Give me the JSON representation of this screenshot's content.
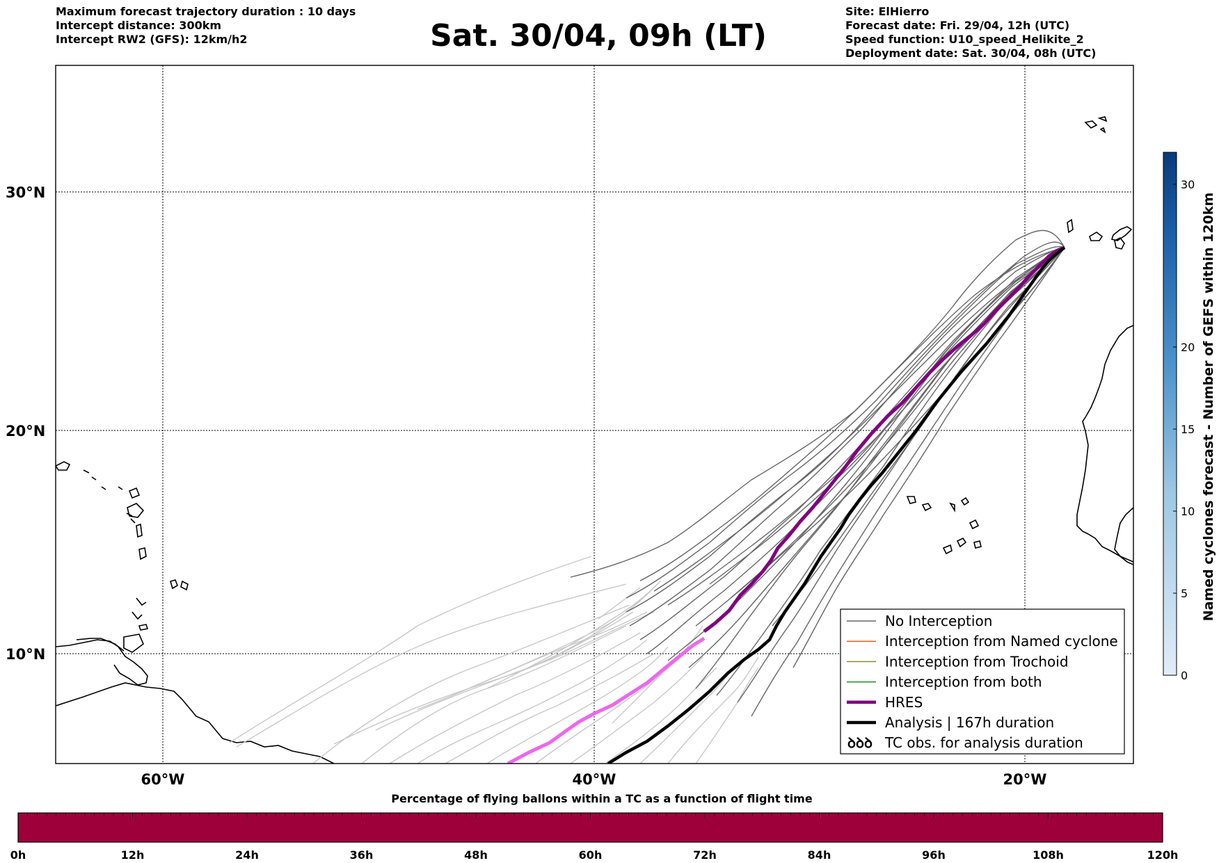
{
  "header": {
    "left": [
      "Maximum forecast trajectory duration : 10 days",
      "Intercept distance: 300km",
      "Intercept RW2 (GFS):  12km/h2"
    ],
    "title": "Sat. 30/04, 09h (LT)",
    "right": [
      "Site: ElHierro",
      "Forecast date: Fri. 29/04, 12h (UTC)",
      "Speed function: U10_speed_Helikite_2",
      "Deployment date: Sat. 30/04, 08h (UTC)"
    ]
  },
  "map": {
    "lat_labels": [
      "30°N",
      "20°N",
      "10°N"
    ],
    "lon_labels": [
      "60°W",
      "40°W",
      "20°W"
    ],
    "colors": {
      "no_interception": "#666666",
      "faded_trajectories": "#c8c8c8",
      "named_cyclone": "#ff5a1e",
      "trochoid": "#8c8c28",
      "both": "#1e8c1e",
      "hres": "#800080",
      "hres_early": "#ee66ee",
      "analysis": "#000000"
    }
  },
  "legend": {
    "items": [
      {
        "label": "No Interception",
        "color": "#666666",
        "style": "thin"
      },
      {
        "label": "Interception from Named cyclone",
        "color": "#ff5a1e",
        "style": "thin"
      },
      {
        "label": "Interception from Trochoid",
        "color": "#8c8c28",
        "style": "thin"
      },
      {
        "label": "Interception from both",
        "color": "#1e8c1e",
        "style": "thin"
      },
      {
        "label": "HRES",
        "color": "#800080",
        "style": "thick"
      },
      {
        "label": "Analysis | 167h duration",
        "color": "#000000",
        "style": "thick"
      },
      {
        "label": "TC obs. for analysis duration",
        "color": "#000000",
        "style": "symbol",
        "symbol": "ꝺꝺꝺ"
      }
    ]
  },
  "colorbar": {
    "label": "Named cyclones forecast - Number of GEFS within 120km",
    "ticks": [
      "0",
      "5",
      "10",
      "15",
      "20",
      "30"
    ]
  },
  "flight_bar": {
    "title": "Percentage of flying ballons within a TC as a function of flight time",
    "color": "#9e003a",
    "ticks": [
      "0h",
      "12h",
      "24h",
      "36h",
      "48h",
      "60h",
      "72h",
      "84h",
      "96h",
      "108h",
      "120h"
    ]
  }
}
